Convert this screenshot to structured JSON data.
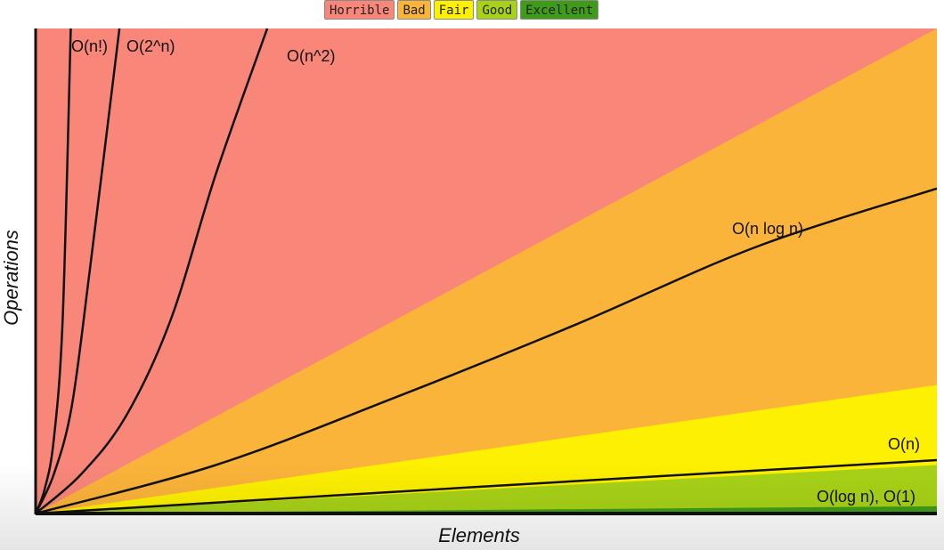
{
  "chart_data": {
    "type": "area",
    "title": "",
    "xlabel": "Elements",
    "ylabel": "Operations",
    "xlim": [
      0,
      100
    ],
    "ylim": [
      0,
      100
    ],
    "grid": false,
    "legend_position": "top-center",
    "legend": [
      {
        "name": "Horrible",
        "color": "#f8877a"
      },
      {
        "name": "Bad",
        "color": "#fbb43a"
      },
      {
        "name": "Fair",
        "color": "#fdf000"
      },
      {
        "name": "Good",
        "color": "#a8d217"
      },
      {
        "name": "Excellent",
        "color": "#3f9c18"
      }
    ],
    "regions": [
      {
        "name": "Horrible",
        "color": "#f8877a",
        "y_at_xmax": 100
      },
      {
        "name": "Bad",
        "color": "#fbb43a",
        "y_at_xmax": 100
      },
      {
        "name": "Fair",
        "color": "#fdf000",
        "y_at_xmax": 26.5
      },
      {
        "name": "Good",
        "color": "#a8d217",
        "y_at_xmax": 10
      },
      {
        "name": "Excellent",
        "color": "#3f9c18",
        "y_at_xmax": 1.5
      }
    ],
    "series": [
      {
        "label": "O(n!)",
        "points": [
          [
            0,
            0
          ],
          [
            1,
            5
          ],
          [
            2,
            15
          ],
          [
            3,
            40
          ],
          [
            3.9,
            100
          ]
        ]
      },
      {
        "label": "O(2^n)",
        "points": [
          [
            0,
            0
          ],
          [
            2,
            8
          ],
          [
            4,
            22
          ],
          [
            6,
            50
          ],
          [
            9.3,
            100
          ]
        ]
      },
      {
        "label": "O(n^2)",
        "points": [
          [
            0,
            0
          ],
          [
            5,
            8
          ],
          [
            10,
            20
          ],
          [
            15,
            40
          ],
          [
            20,
            70
          ],
          [
            25.7,
            100
          ]
        ]
      },
      {
        "label": "O(n log n)",
        "points": [
          [
            0,
            0
          ],
          [
            20,
            10
          ],
          [
            40,
            24
          ],
          [
            60,
            39
          ],
          [
            80,
            55
          ],
          [
            100,
            67
          ]
        ]
      },
      {
        "label": "O(n)",
        "points": [
          [
            0,
            0
          ],
          [
            50,
            5.6
          ],
          [
            100,
            11
          ]
        ]
      },
      {
        "label": "O(log n), O(1)",
        "points": [
          [
            0,
            0
          ],
          [
            100,
            0
          ]
        ]
      }
    ]
  }
}
